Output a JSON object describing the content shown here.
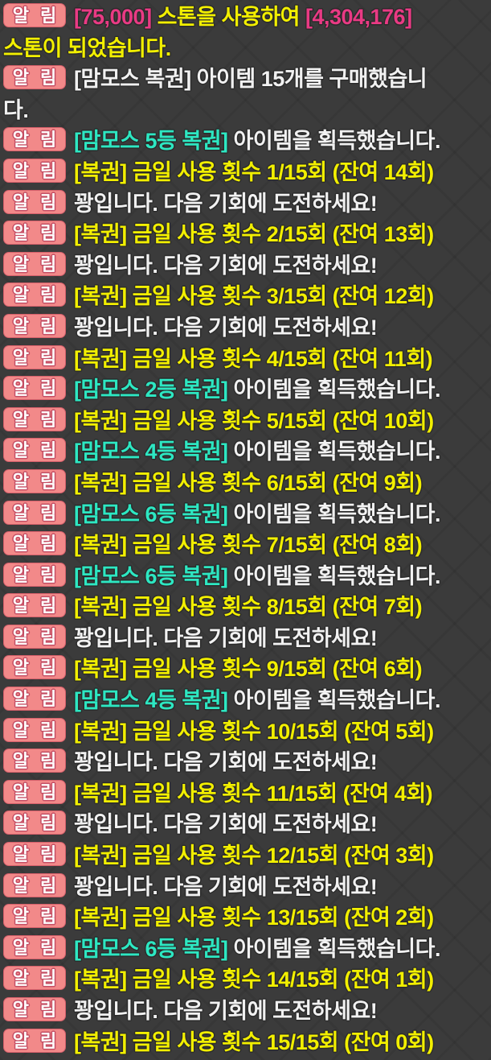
{
  "badge": {
    "label": "알 림",
    "bg": "#f28989",
    "text_color": "#ffffff",
    "outline_color": "#c44d63"
  },
  "colors": {
    "background": "#3b3b3b",
    "text_outline": "#2b2b2b",
    "yellow": "#f2ef00",
    "white": "#f1f1f1",
    "cyan": "#2de7c2",
    "magenta": "#e93a84"
  },
  "messages": [
    {
      "segments": [
        {
          "text": "[75,000]",
          "color": "magenta"
        },
        {
          "text": " 스톤을 사용하여 ",
          "color": "yellow"
        },
        {
          "text": "[4,304,176]",
          "color": "magenta"
        },
        {
          "br": true
        },
        {
          "text": "스톤이 되었습니다.",
          "color": "yellow"
        }
      ]
    },
    {
      "segments": [
        {
          "text": "[맘모스 복권] 아이템 15개를 구매했습니",
          "color": "white"
        },
        {
          "br": true
        },
        {
          "text": "다.",
          "color": "white"
        }
      ]
    },
    {
      "segments": [
        {
          "text": "[맘모스 5등 복권]",
          "color": "cyan"
        },
        {
          "text": " 아이템을 획득했습니다.",
          "color": "white"
        }
      ]
    },
    {
      "segments": [
        {
          "text": "[복권] 금일 사용 횟수 1/15회 (잔여 14회)",
          "color": "yellow"
        }
      ]
    },
    {
      "segments": [
        {
          "text": "꽝입니다. 다음 기회에 도전하세요!",
          "color": "white"
        }
      ]
    },
    {
      "segments": [
        {
          "text": "[복권] 금일 사용 횟수 2/15회 (잔여 13회)",
          "color": "yellow"
        }
      ]
    },
    {
      "segments": [
        {
          "text": "꽝입니다. 다음 기회에 도전하세요!",
          "color": "white"
        }
      ]
    },
    {
      "segments": [
        {
          "text": "[복권] 금일 사용 횟수 3/15회 (잔여 12회)",
          "color": "yellow"
        }
      ]
    },
    {
      "segments": [
        {
          "text": "꽝입니다. 다음 기회에 도전하세요!",
          "color": "white"
        }
      ]
    },
    {
      "segments": [
        {
          "text": "[복권] 금일 사용 횟수 4/15회 (잔여 11회)",
          "color": "yellow"
        }
      ]
    },
    {
      "segments": [
        {
          "text": "[맘모스 2등 복권]",
          "color": "cyan"
        },
        {
          "text": " 아이템을 획득했습니다.",
          "color": "white"
        }
      ]
    },
    {
      "segments": [
        {
          "text": "[복권] 금일 사용 횟수 5/15회 (잔여 10회)",
          "color": "yellow"
        }
      ]
    },
    {
      "segments": [
        {
          "text": "[맘모스 4등 복권]",
          "color": "cyan"
        },
        {
          "text": " 아이템을 획득했습니다.",
          "color": "white"
        }
      ]
    },
    {
      "segments": [
        {
          "text": "[복권] 금일 사용 횟수 6/15회 (잔여 9회)",
          "color": "yellow"
        }
      ]
    },
    {
      "segments": [
        {
          "text": "[맘모스 6등 복권]",
          "color": "cyan"
        },
        {
          "text": " 아이템을 획득했습니다.",
          "color": "white"
        }
      ]
    },
    {
      "segments": [
        {
          "text": "[복권] 금일 사용 횟수 7/15회 (잔여 8회)",
          "color": "yellow"
        }
      ]
    },
    {
      "segments": [
        {
          "text": "[맘모스 6등 복권]",
          "color": "cyan"
        },
        {
          "text": " 아이템을 획득했습니다.",
          "color": "white"
        }
      ]
    },
    {
      "segments": [
        {
          "text": "[복권] 금일 사용 횟수 8/15회 (잔여 7회)",
          "color": "yellow"
        }
      ]
    },
    {
      "segments": [
        {
          "text": "꽝입니다. 다음 기회에 도전하세요!",
          "color": "white"
        }
      ]
    },
    {
      "segments": [
        {
          "text": "[복권] 금일 사용 횟수 9/15회 (잔여 6회)",
          "color": "yellow"
        }
      ]
    },
    {
      "segments": [
        {
          "text": "[맘모스 4등 복권]",
          "color": "cyan"
        },
        {
          "text": " 아이템을 획득했습니다.",
          "color": "white"
        }
      ]
    },
    {
      "segments": [
        {
          "text": "[복권] 금일 사용 횟수 10/15회 (잔여 5회)",
          "color": "yellow"
        }
      ]
    },
    {
      "segments": [
        {
          "text": "꽝입니다. 다음 기회에 도전하세요!",
          "color": "white"
        }
      ]
    },
    {
      "segments": [
        {
          "text": "[복권] 금일 사용 횟수 11/15회 (잔여 4회)",
          "color": "yellow"
        }
      ]
    },
    {
      "segments": [
        {
          "text": "꽝입니다. 다음 기회에 도전하세요!",
          "color": "white"
        }
      ]
    },
    {
      "segments": [
        {
          "text": "[복권] 금일 사용 횟수 12/15회 (잔여 3회)",
          "color": "yellow"
        }
      ]
    },
    {
      "segments": [
        {
          "text": "꽝입니다. 다음 기회에 도전하세요!",
          "color": "white"
        }
      ]
    },
    {
      "segments": [
        {
          "text": "[복권] 금일 사용 횟수 13/15회 (잔여 2회)",
          "color": "yellow"
        }
      ]
    },
    {
      "segments": [
        {
          "text": "[맘모스 6등 복권]",
          "color": "cyan"
        },
        {
          "text": " 아이템을 획득했습니다.",
          "color": "white"
        }
      ]
    },
    {
      "segments": [
        {
          "text": "[복권] 금일 사용 횟수 14/15회 (잔여 1회)",
          "color": "yellow"
        }
      ]
    },
    {
      "segments": [
        {
          "text": "꽝입니다. 다음 기회에 도전하세요!",
          "color": "white"
        }
      ]
    },
    {
      "segments": [
        {
          "text": "[복권] 금일 사용 횟수 15/15회 (잔여 0회)",
          "color": "yellow"
        }
      ]
    }
  ]
}
